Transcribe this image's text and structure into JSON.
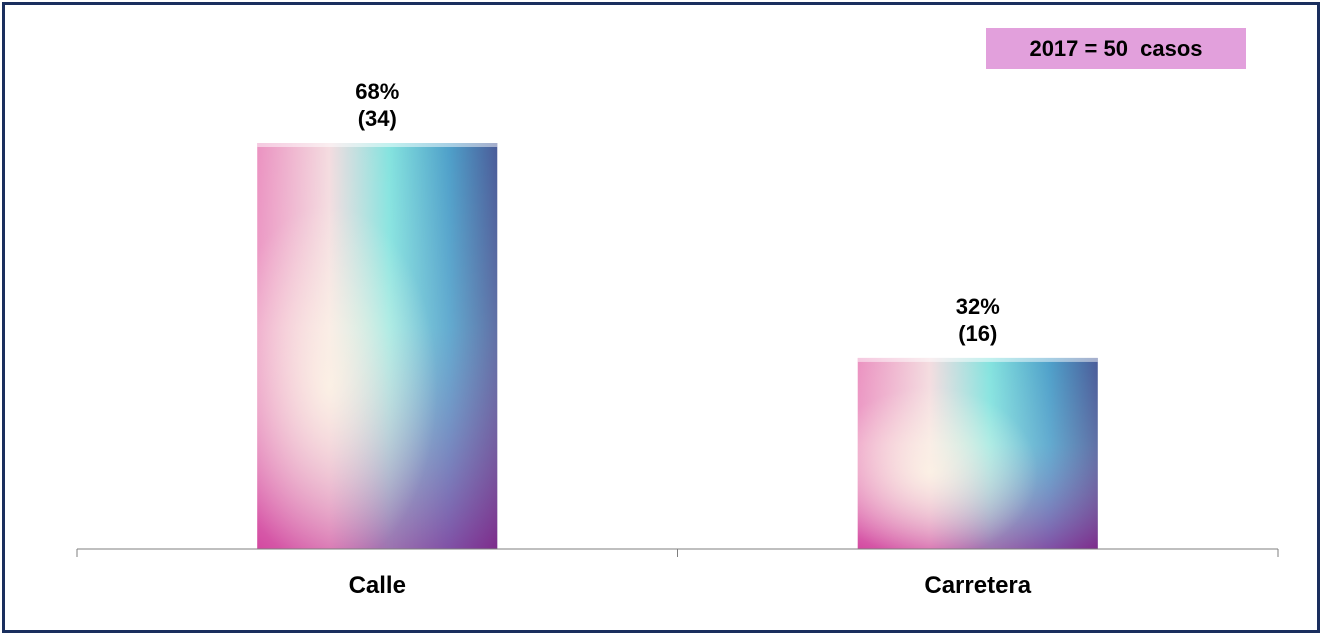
{
  "chart_data": {
    "type": "bar",
    "categories": [
      "Calle",
      "Carretera"
    ],
    "values": [
      68,
      32
    ],
    "counts": [
      34,
      16
    ],
    "value_labels": [
      "68%",
      "32%"
    ],
    "count_labels": [
      "(34)",
      "(16)"
    ],
    "annotation": "2017 = 50  casos",
    "ylim": [
      0,
      80
    ],
    "grid": false,
    "colors": {
      "border": "#1a2f5e",
      "badge": "#e2a0dc",
      "bar_gradient": [
        "#d43fa6",
        "#f3a1c6",
        "#f4efe0",
        "#6fe0dc",
        "#2b9fc4",
        "#274a92"
      ]
    }
  }
}
